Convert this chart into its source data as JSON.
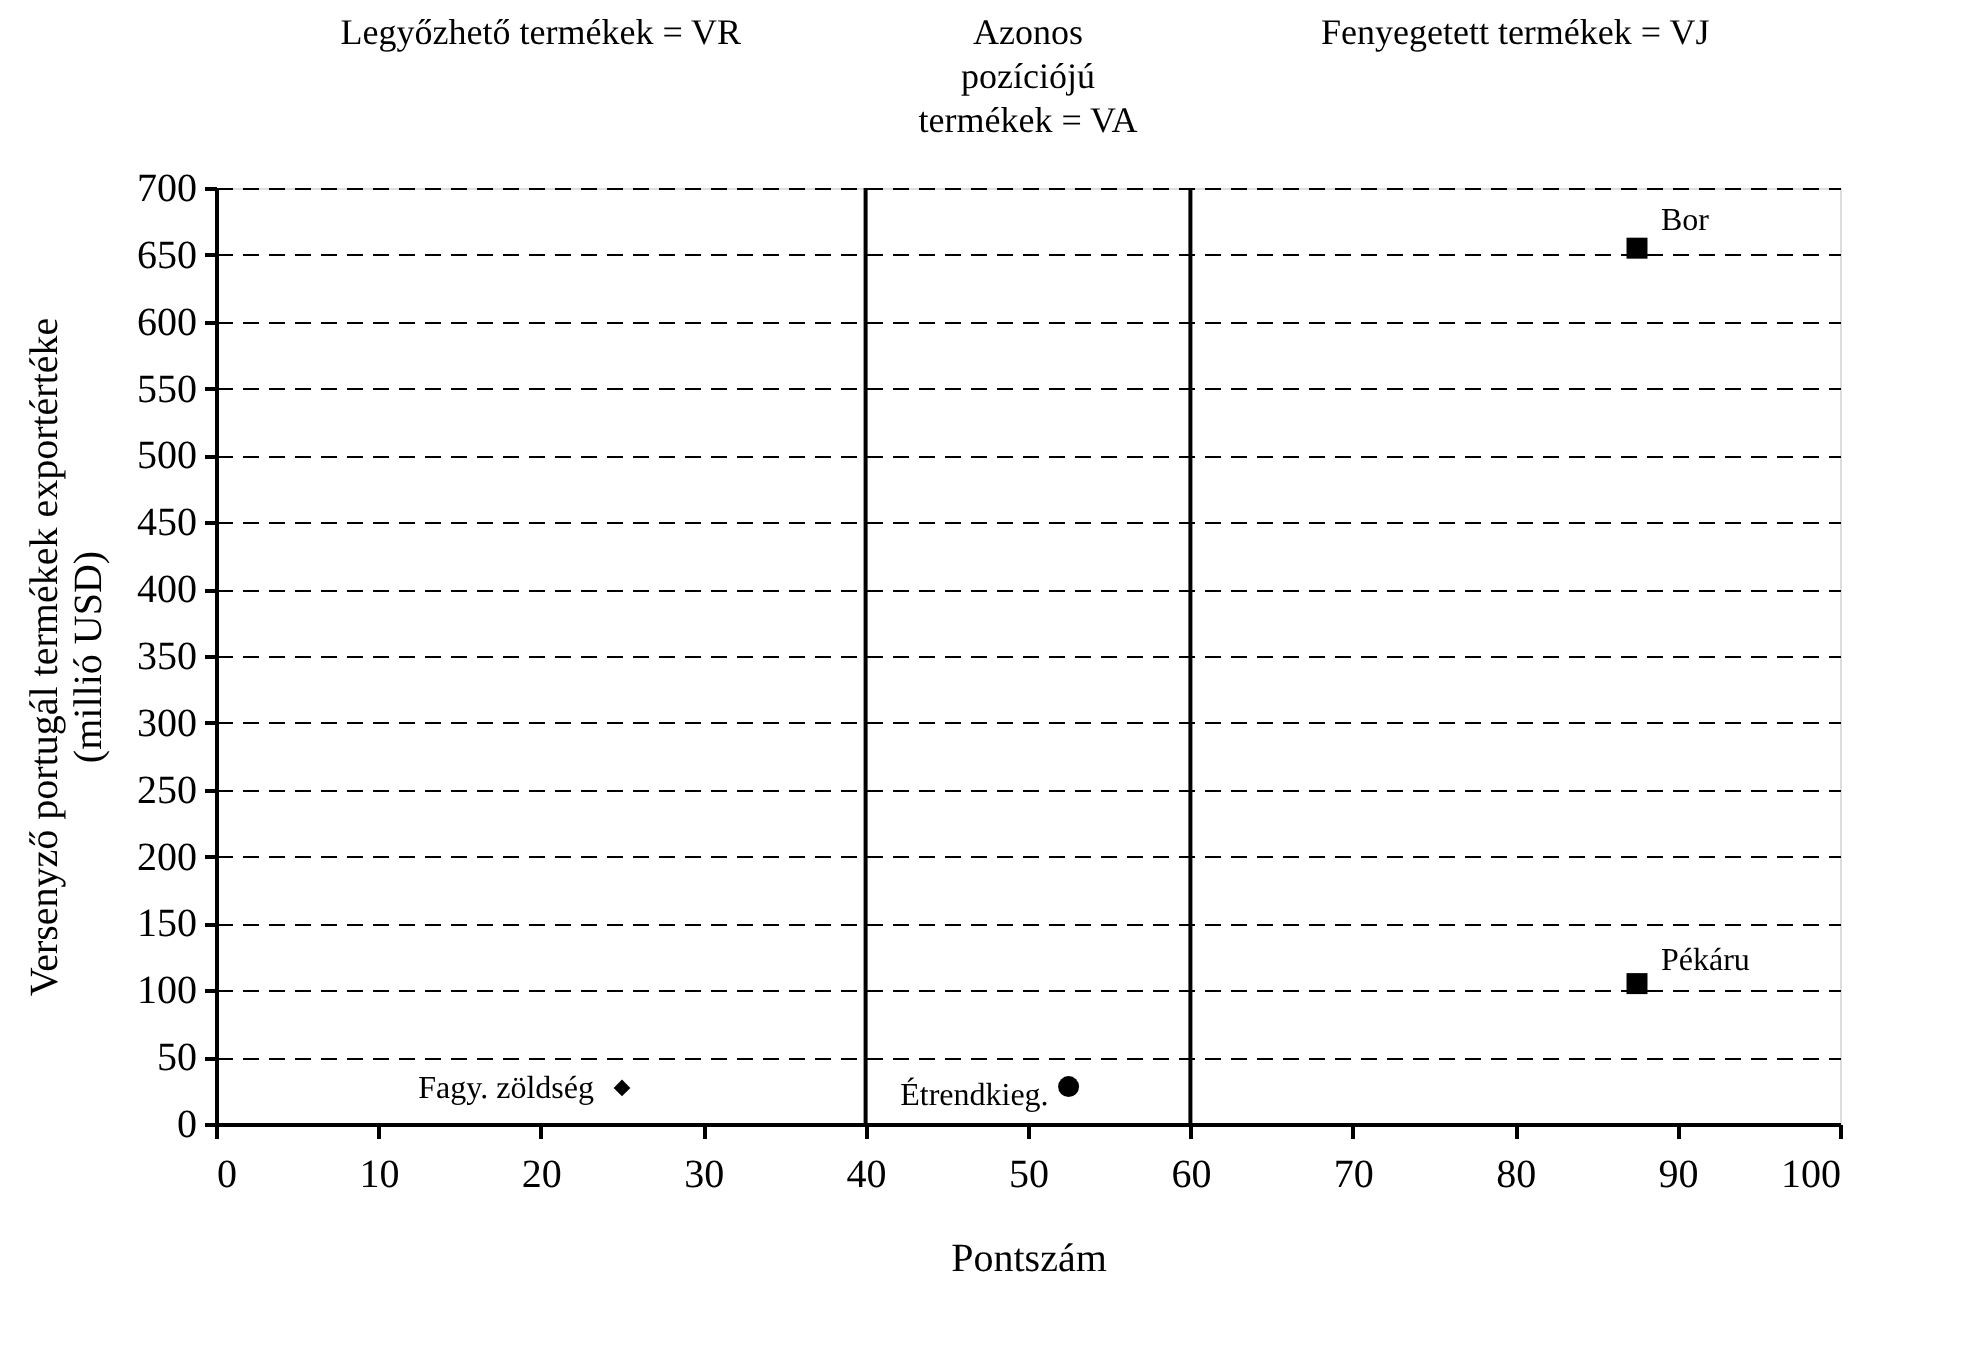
{
  "chart_data": {
    "type": "scatter",
    "xlabel": "Pontszám",
    "ylabel": "Versenyző portugál termékek exportértéke\n(millió USD)",
    "series": [
      {
        "color": "#000000",
        "marker": "diamond",
        "x": [
          25
        ],
        "values": [
          27
        ]
      },
      {
        "color": "#000000",
        "marker": "circle",
        "x": [
          52.5
        ],
        "values": [
          28
        ]
      },
      {
        "color": "#000000",
        "marker": "square",
        "x": [
          87.5,
          87.5
        ],
        "values": [
          655,
          105
        ]
      }
    ],
    "annotations": [
      {
        "text": "Fagy. zöldség",
        "x": 25,
        "y": 27
      },
      {
        "text": "Étrendkieg.",
        "x": 52.5,
        "y": 28
      },
      {
        "text": "Bor",
        "x": 87.5,
        "y": 655
      },
      {
        "text": "Pékáru",
        "x": 87.5,
        "y": 105
      },
      "Legyőzhető termékek = VR",
      "Azonos\npozíciójú\ntermékek = VA",
      "Fenyegetett  termékek = VJ"
    ],
    "ref_lines": [
      {
        "axis": "x",
        "value": 40,
        "color": "#000000"
      },
      {
        "axis": "x",
        "value": 60,
        "color": "#000000"
      }
    ],
    "xlim": [
      0,
      100
    ],
    "xticks": [
      0,
      10,
      20,
      30,
      40,
      50,
      60,
      70,
      80,
      90,
      100
    ],
    "ylim": [
      0,
      700
    ],
    "yticks": [
      0,
      50,
      100,
      150,
      200,
      250,
      300,
      350,
      400,
      450,
      500,
      550,
      600,
      650,
      700
    ],
    "grid": "y"
  }
}
